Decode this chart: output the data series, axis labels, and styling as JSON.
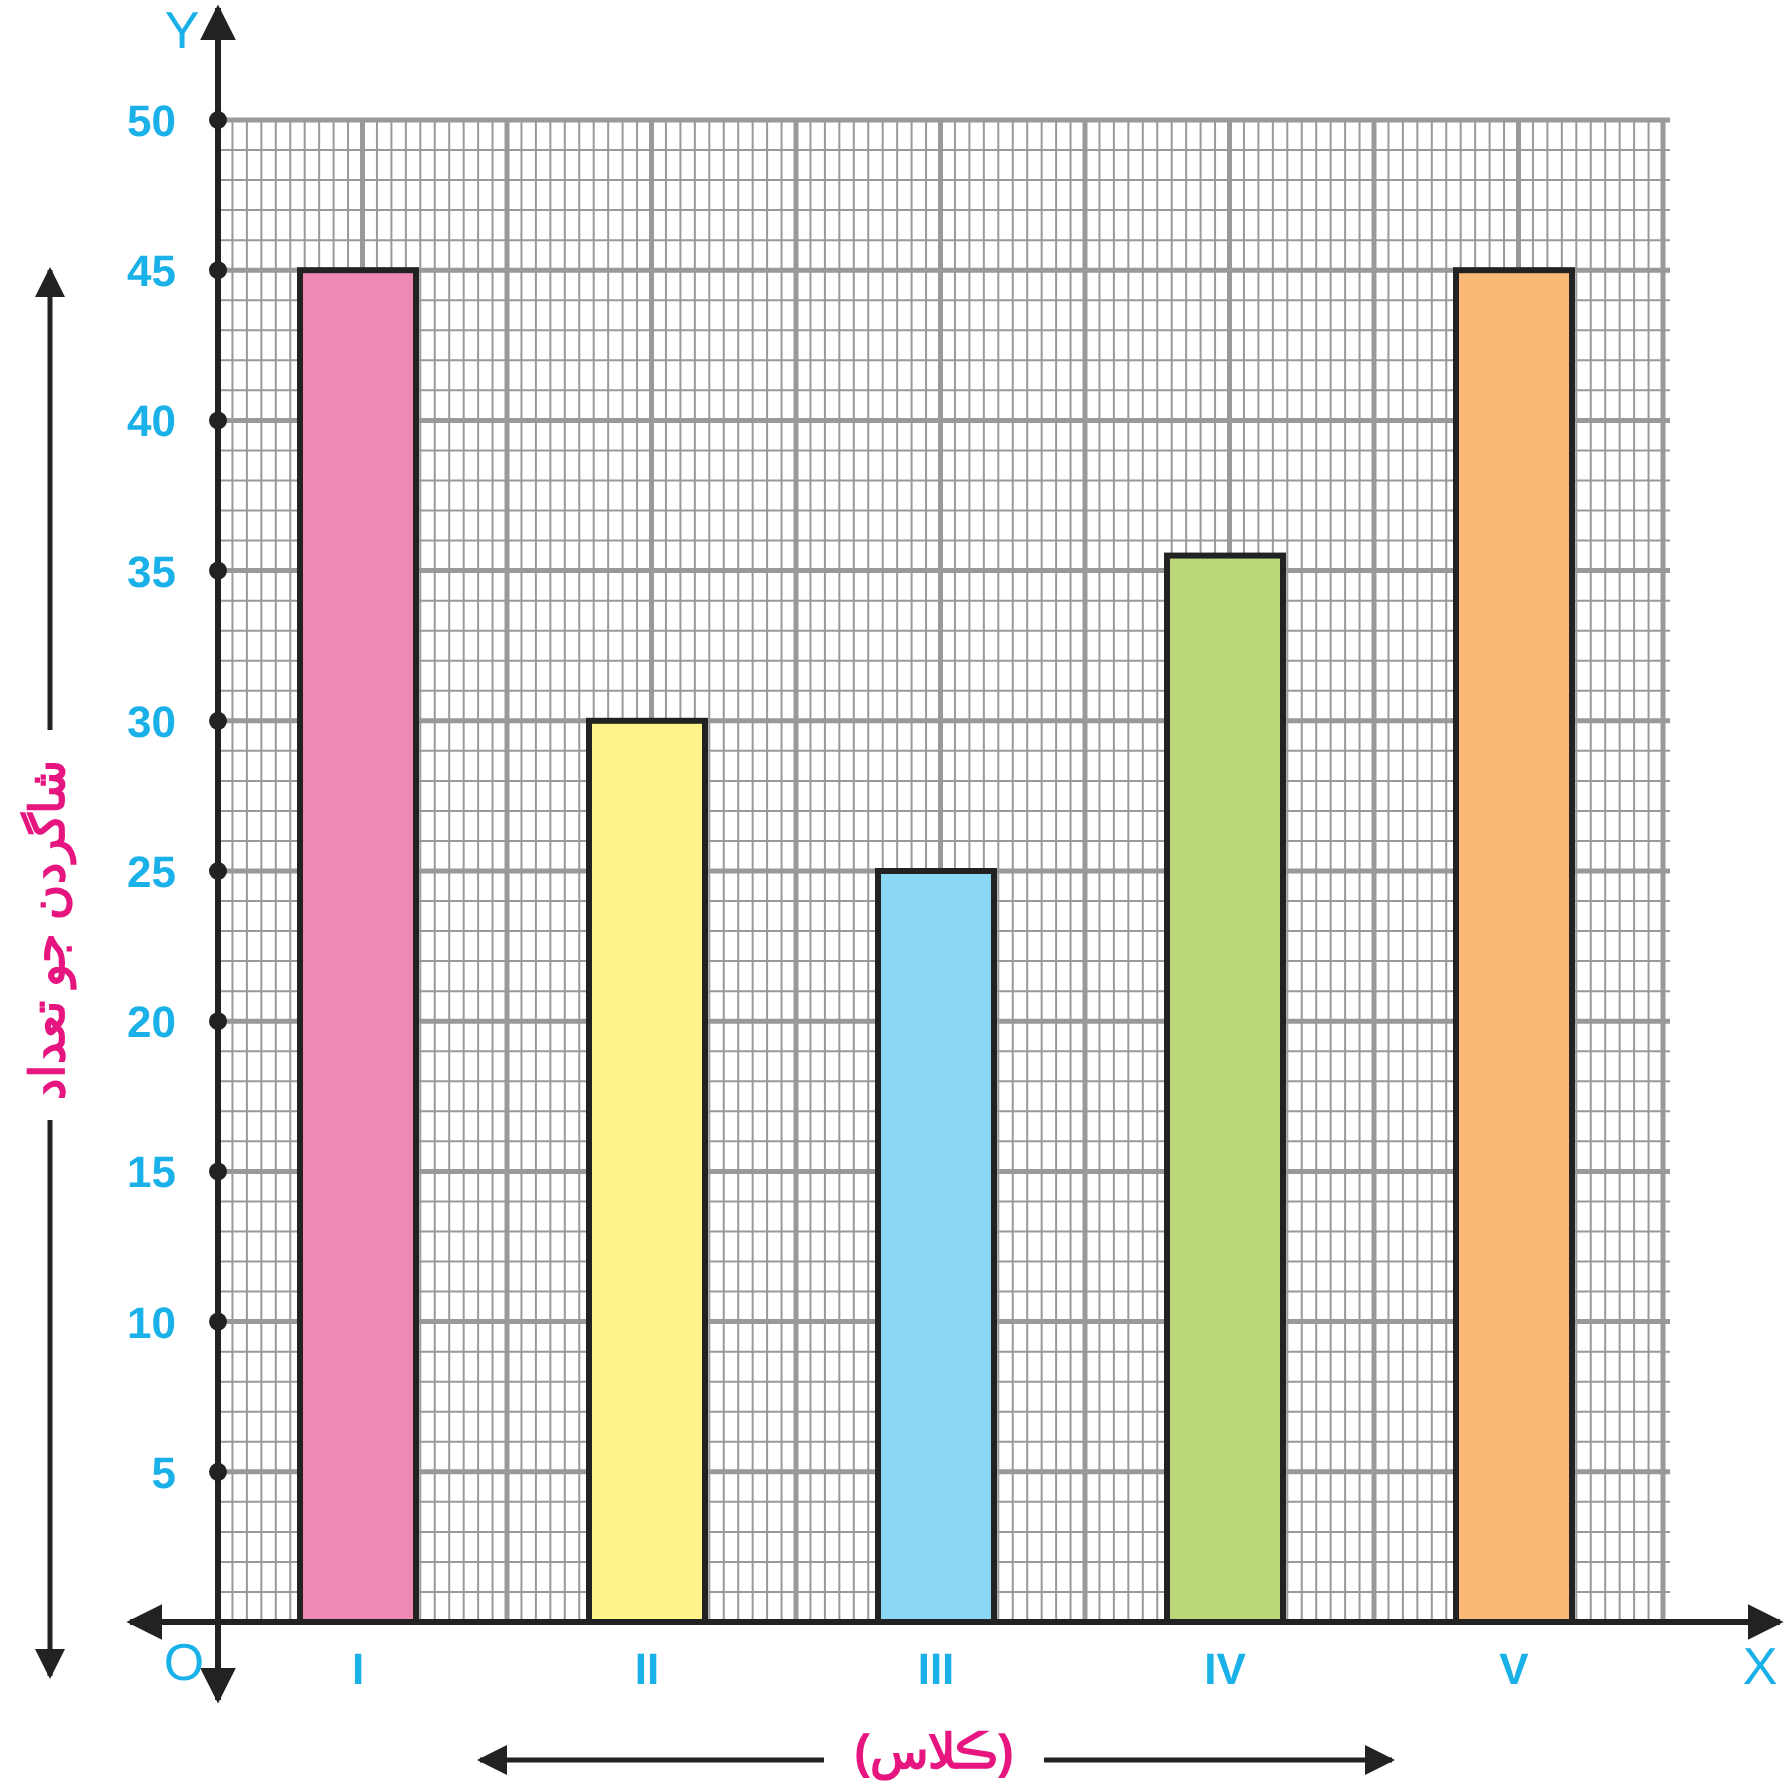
{
  "chart_data": {
    "type": "bar",
    "xlabel": "(ڪلاس)",
    "ylabel": "شاگردن جو تعداد",
    "categories": [
      "I",
      "II",
      "III",
      "IV",
      "V"
    ],
    "values": [
      45,
      30,
      25,
      35.5,
      45
    ],
    "colors": [
      "#f088b4",
      "#fff48a",
      "#8ad8f6",
      "#bcd878",
      "#fbb978"
    ],
    "ylim": [
      0,
      50
    ],
    "yticks": [
      5,
      10,
      15,
      20,
      25,
      30,
      35,
      40,
      45,
      50
    ],
    "grid": true,
    "annotations": [
      "O",
      "X",
      "Y"
    ]
  }
}
